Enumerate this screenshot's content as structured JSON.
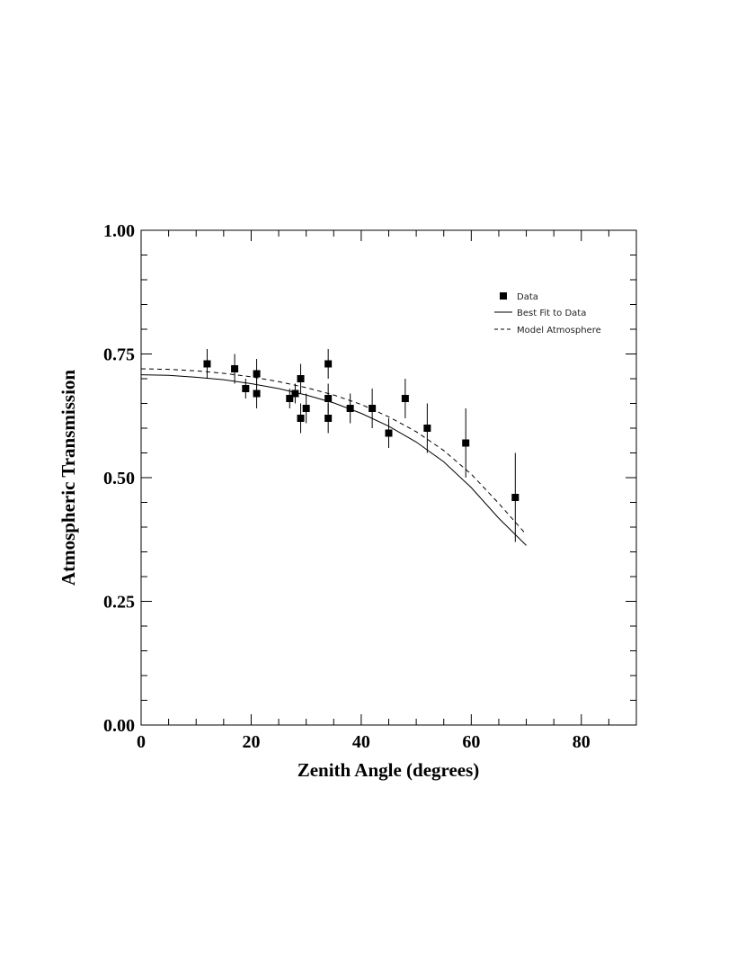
{
  "chart_data": {
    "type": "scatter",
    "xlabel": "Zenith Angle (degrees)",
    "ylabel": "Atmospheric Transmission",
    "xlim": [
      0,
      90
    ],
    "ylim": [
      0,
      1
    ],
    "x_ticks": [
      0,
      20,
      40,
      60,
      80
    ],
    "x_tick_labels": [
      "0",
      "20",
      "40",
      "60",
      "80"
    ],
    "y_ticks": [
      0,
      0.25,
      0.5,
      0.75,
      1.0
    ],
    "y_tick_labels": [
      "0.00",
      "0.25",
      "0.50",
      "0.75",
      "1.00"
    ],
    "grid": false,
    "legend_position": "top-right",
    "legend": [
      "Data",
      "Best Fit to Data",
      "Model Atmosphere"
    ],
    "series": [
      {
        "name": "Data",
        "kind": "points_with_error_bars",
        "marker": "filled-square",
        "points": [
          {
            "x": 12,
            "y": 0.73,
            "err": 0.03
          },
          {
            "x": 17,
            "y": 0.72,
            "err": 0.03
          },
          {
            "x": 19,
            "y": 0.68,
            "err": 0.02
          },
          {
            "x": 21,
            "y": 0.71,
            "err": 0.03
          },
          {
            "x": 21,
            "y": 0.67,
            "err": 0.03
          },
          {
            "x": 27,
            "y": 0.66,
            "err": 0.02
          },
          {
            "x": 28,
            "y": 0.67,
            "err": 0.02
          },
          {
            "x": 29,
            "y": 0.7,
            "err": 0.03
          },
          {
            "x": 29,
            "y": 0.62,
            "err": 0.03
          },
          {
            "x": 30,
            "y": 0.64,
            "err": 0.03
          },
          {
            "x": 34,
            "y": 0.73,
            "err": 0.03
          },
          {
            "x": 34,
            "y": 0.66,
            "err": 0.03
          },
          {
            "x": 34,
            "y": 0.62,
            "err": 0.03
          },
          {
            "x": 38,
            "y": 0.64,
            "err": 0.03
          },
          {
            "x": 42,
            "y": 0.64,
            "err": 0.04
          },
          {
            "x": 45,
            "y": 0.59,
            "err": 0.03
          },
          {
            "x": 48,
            "y": 0.66,
            "err": 0.04
          },
          {
            "x": 52,
            "y": 0.6,
            "err": 0.05
          },
          {
            "x": 59,
            "y": 0.57,
            "err": 0.07
          },
          {
            "x": 68,
            "y": 0.46,
            "err": 0.09
          }
        ]
      },
      {
        "name": "Best Fit to Data",
        "kind": "line",
        "style": "solid",
        "x": [
          0,
          5,
          10,
          15,
          20,
          25,
          30,
          35,
          40,
          45,
          50,
          55,
          60,
          65,
          70
        ],
        "y": [
          0.708,
          0.707,
          0.703,
          0.698,
          0.69,
          0.68,
          0.667,
          0.651,
          0.63,
          0.604,
          0.572,
          0.532,
          0.48,
          0.418,
          0.363
        ]
      },
      {
        "name": "Model Atmosphere",
        "kind": "line",
        "style": "dashed",
        "x": [
          0,
          5,
          10,
          15,
          20,
          25,
          30,
          35,
          40,
          45,
          50,
          55,
          60,
          65,
          70
        ],
        "y": [
          0.72,
          0.719,
          0.716,
          0.711,
          0.704,
          0.694,
          0.682,
          0.667,
          0.648,
          0.623,
          0.593,
          0.555,
          0.507,
          0.448,
          0.385
        ]
      }
    ]
  }
}
